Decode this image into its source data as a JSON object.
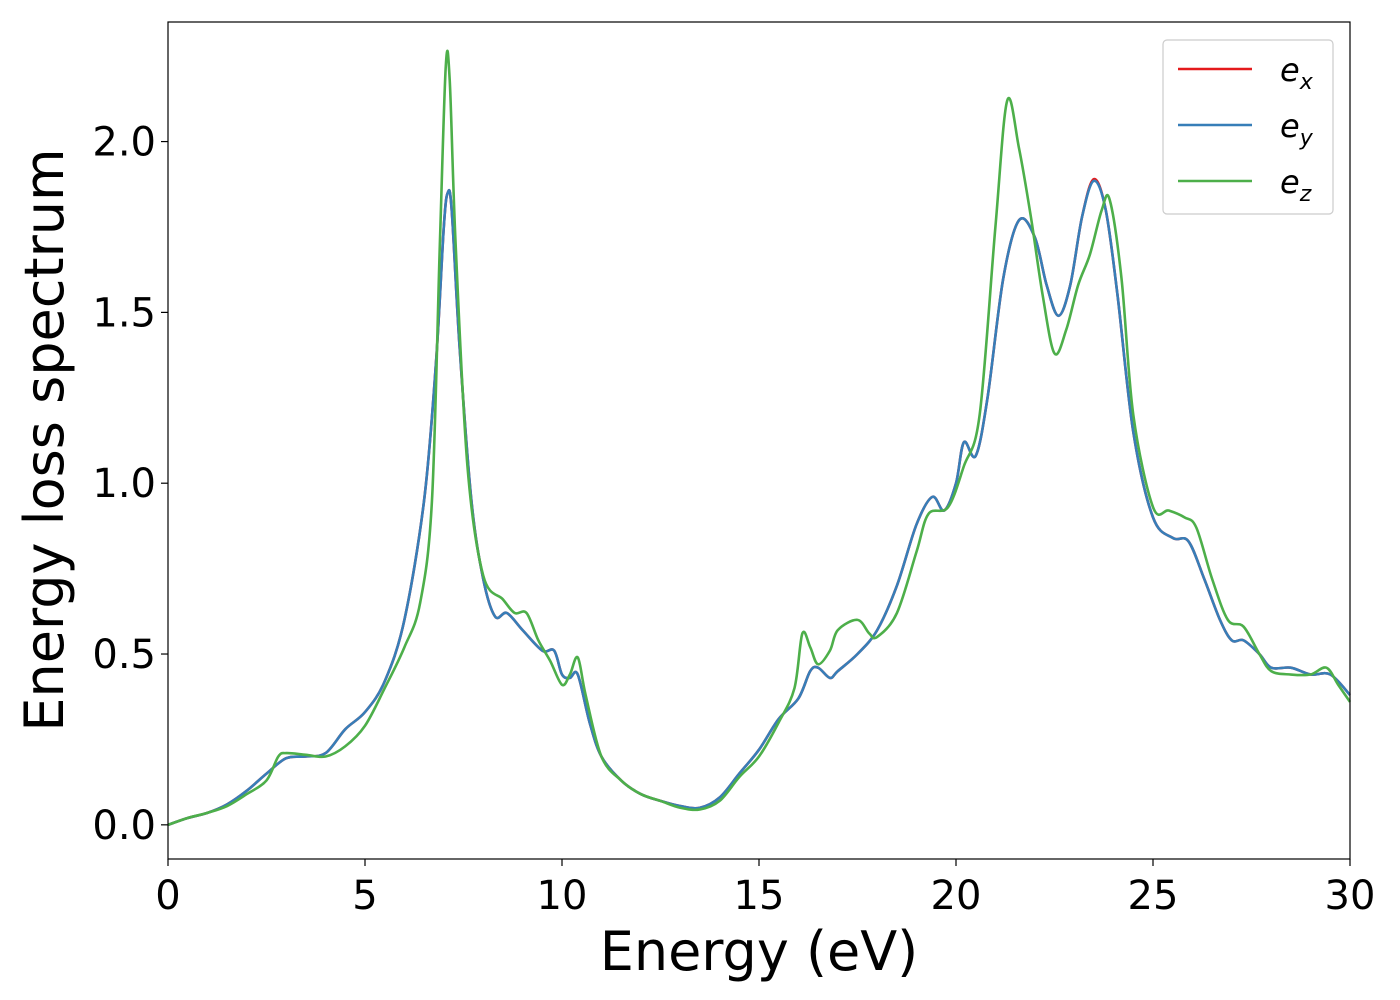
{
  "chart_data": {
    "type": "line",
    "title": "",
    "xlabel": "Energy (eV)",
    "ylabel": "Energy loss spectrum",
    "xlim": [
      0,
      30
    ],
    "ylim": [
      -0.1,
      2.35
    ],
    "xticks": [
      0,
      5,
      10,
      15,
      20,
      25,
      30
    ],
    "yticks": [
      0.0,
      0.5,
      1.0,
      1.5,
      2.0
    ],
    "xtick_labels": [
      "0",
      "5",
      "10",
      "15",
      "20",
      "25",
      "30"
    ],
    "ytick_labels": [
      "0.0",
      "0.5",
      "1.0",
      "1.5",
      "2.0"
    ],
    "grid": false,
    "legend_position": "top-right",
    "series": [
      {
        "name": "e",
        "subscript": "x",
        "color": "#e41a1c",
        "points": [
          [
            0,
            0.0
          ],
          [
            0.5,
            0.02
          ],
          [
            1,
            0.035
          ],
          [
            1.5,
            0.06
          ],
          [
            2,
            0.1
          ],
          [
            2.5,
            0.15
          ],
          [
            3,
            0.195
          ],
          [
            3.5,
            0.2
          ],
          [
            4,
            0.21
          ],
          [
            4.5,
            0.28
          ],
          [
            5,
            0.33
          ],
          [
            5.5,
            0.42
          ],
          [
            6,
            0.6
          ],
          [
            6.5,
            0.95
          ],
          [
            6.8,
            1.35
          ],
          [
            7,
            1.75
          ],
          [
            7.1,
            1.85
          ],
          [
            7.2,
            1.8
          ],
          [
            7.4,
            1.4
          ],
          [
            7.7,
            0.95
          ],
          [
            8,
            0.72
          ],
          [
            8.3,
            0.61
          ],
          [
            8.6,
            0.62
          ],
          [
            9,
            0.57
          ],
          [
            9.5,
            0.51
          ],
          [
            9.8,
            0.51
          ],
          [
            10,
            0.44
          ],
          [
            10.2,
            0.43
          ],
          [
            10.4,
            0.44
          ],
          [
            10.7,
            0.3
          ],
          [
            11,
            0.2
          ],
          [
            11.5,
            0.13
          ],
          [
            12,
            0.09
          ],
          [
            12.5,
            0.07
          ],
          [
            13,
            0.055
          ],
          [
            13.5,
            0.05
          ],
          [
            14,
            0.08
          ],
          [
            14.5,
            0.15
          ],
          [
            15,
            0.22
          ],
          [
            15.5,
            0.31
          ],
          [
            16,
            0.37
          ],
          [
            16.3,
            0.45
          ],
          [
            16.5,
            0.46
          ],
          [
            16.8,
            0.43
          ],
          [
            17,
            0.45
          ],
          [
            17.5,
            0.5
          ],
          [
            18,
            0.57
          ],
          [
            18.5,
            0.7
          ],
          [
            19,
            0.88
          ],
          [
            19.4,
            0.96
          ],
          [
            19.7,
            0.92
          ],
          [
            20,
            1.0
          ],
          [
            20.2,
            1.12
          ],
          [
            20.5,
            1.08
          ],
          [
            20.8,
            1.25
          ],
          [
            21.2,
            1.6
          ],
          [
            21.6,
            1.77
          ],
          [
            22,
            1.72
          ],
          [
            22.3,
            1.58
          ],
          [
            22.6,
            1.49
          ],
          [
            22.9,
            1.58
          ],
          [
            23.2,
            1.78
          ],
          [
            23.5,
            1.89
          ],
          [
            23.8,
            1.8
          ],
          [
            24.1,
            1.55
          ],
          [
            24.5,
            1.15
          ],
          [
            25,
            0.9
          ],
          [
            25.5,
            0.84
          ],
          [
            25.9,
            0.83
          ],
          [
            26.3,
            0.72
          ],
          [
            26.7,
            0.6
          ],
          [
            27,
            0.54
          ],
          [
            27.3,
            0.54
          ],
          [
            27.7,
            0.5
          ],
          [
            28,
            0.46
          ],
          [
            28.5,
            0.46
          ],
          [
            29,
            0.44
          ],
          [
            29.5,
            0.44
          ],
          [
            30,
            0.38
          ]
        ]
      },
      {
        "name": "e",
        "subscript": "y",
        "color": "#377eb8",
        "points": [
          [
            0,
            0.0
          ],
          [
            0.5,
            0.02
          ],
          [
            1,
            0.035
          ],
          [
            1.5,
            0.06
          ],
          [
            2,
            0.1
          ],
          [
            2.5,
            0.15
          ],
          [
            3,
            0.195
          ],
          [
            3.5,
            0.2
          ],
          [
            4,
            0.21
          ],
          [
            4.5,
            0.28
          ],
          [
            5,
            0.33
          ],
          [
            5.5,
            0.42
          ],
          [
            6,
            0.6
          ],
          [
            6.5,
            0.95
          ],
          [
            6.8,
            1.35
          ],
          [
            7,
            1.75
          ],
          [
            7.1,
            1.85
          ],
          [
            7.2,
            1.8
          ],
          [
            7.4,
            1.4
          ],
          [
            7.7,
            0.95
          ],
          [
            8,
            0.72
          ],
          [
            8.3,
            0.61
          ],
          [
            8.6,
            0.62
          ],
          [
            9,
            0.57
          ],
          [
            9.5,
            0.51
          ],
          [
            9.8,
            0.51
          ],
          [
            10,
            0.44
          ],
          [
            10.2,
            0.43
          ],
          [
            10.4,
            0.44
          ],
          [
            10.7,
            0.3
          ],
          [
            11,
            0.2
          ],
          [
            11.5,
            0.13
          ],
          [
            12,
            0.09
          ],
          [
            12.5,
            0.07
          ],
          [
            13,
            0.055
          ],
          [
            13.5,
            0.05
          ],
          [
            14,
            0.08
          ],
          [
            14.5,
            0.15
          ],
          [
            15,
            0.22
          ],
          [
            15.5,
            0.31
          ],
          [
            16,
            0.37
          ],
          [
            16.3,
            0.45
          ],
          [
            16.5,
            0.46
          ],
          [
            16.8,
            0.43
          ],
          [
            17,
            0.45
          ],
          [
            17.5,
            0.5
          ],
          [
            18,
            0.57
          ],
          [
            18.5,
            0.7
          ],
          [
            19,
            0.88
          ],
          [
            19.4,
            0.96
          ],
          [
            19.7,
            0.92
          ],
          [
            20,
            1.0
          ],
          [
            20.2,
            1.12
          ],
          [
            20.5,
            1.08
          ],
          [
            20.8,
            1.25
          ],
          [
            21.2,
            1.6
          ],
          [
            21.6,
            1.77
          ],
          [
            22,
            1.72
          ],
          [
            22.3,
            1.58
          ],
          [
            22.6,
            1.49
          ],
          [
            22.9,
            1.58
          ],
          [
            23.2,
            1.78
          ],
          [
            23.5,
            1.885
          ],
          [
            23.8,
            1.8
          ],
          [
            24.1,
            1.55
          ],
          [
            24.5,
            1.15
          ],
          [
            25,
            0.9
          ],
          [
            25.5,
            0.84
          ],
          [
            25.9,
            0.83
          ],
          [
            26.3,
            0.72
          ],
          [
            26.7,
            0.6
          ],
          [
            27,
            0.54
          ],
          [
            27.3,
            0.54
          ],
          [
            27.7,
            0.5
          ],
          [
            28,
            0.46
          ],
          [
            28.5,
            0.46
          ],
          [
            29,
            0.44
          ],
          [
            29.5,
            0.44
          ],
          [
            30,
            0.38
          ]
        ]
      },
      {
        "name": "e",
        "subscript": "z",
        "color": "#4daf4a",
        "points": [
          [
            0,
            0.0
          ],
          [
            0.5,
            0.02
          ],
          [
            1,
            0.035
          ],
          [
            1.5,
            0.055
          ],
          [
            2,
            0.09
          ],
          [
            2.5,
            0.13
          ],
          [
            2.8,
            0.2
          ],
          [
            3,
            0.21
          ],
          [
            3.5,
            0.205
          ],
          [
            4,
            0.2
          ],
          [
            4.5,
            0.23
          ],
          [
            5,
            0.29
          ],
          [
            5.5,
            0.4
          ],
          [
            6,
            0.52
          ],
          [
            6.4,
            0.65
          ],
          [
            6.7,
            0.95
          ],
          [
            6.9,
            1.7
          ],
          [
            7.05,
            2.22
          ],
          [
            7.15,
            2.18
          ],
          [
            7.3,
            1.7
          ],
          [
            7.6,
            1.05
          ],
          [
            8,
            0.73
          ],
          [
            8.5,
            0.66
          ],
          [
            8.8,
            0.62
          ],
          [
            9.1,
            0.62
          ],
          [
            9.4,
            0.54
          ],
          [
            9.7,
            0.48
          ],
          [
            10,
            0.41
          ],
          [
            10.2,
            0.44
          ],
          [
            10.4,
            0.49
          ],
          [
            10.6,
            0.38
          ],
          [
            11,
            0.2
          ],
          [
            11.5,
            0.13
          ],
          [
            12,
            0.09
          ],
          [
            12.5,
            0.07
          ],
          [
            13,
            0.05
          ],
          [
            13.5,
            0.045
          ],
          [
            14,
            0.07
          ],
          [
            14.5,
            0.14
          ],
          [
            15,
            0.2
          ],
          [
            15.5,
            0.3
          ],
          [
            15.9,
            0.4
          ],
          [
            16.1,
            0.56
          ],
          [
            16.3,
            0.52
          ],
          [
            16.5,
            0.47
          ],
          [
            16.8,
            0.51
          ],
          [
            17,
            0.57
          ],
          [
            17.5,
            0.6
          ],
          [
            17.8,
            0.56
          ],
          [
            18,
            0.55
          ],
          [
            18.5,
            0.62
          ],
          [
            19,
            0.8
          ],
          [
            19.3,
            0.91
          ],
          [
            19.8,
            0.93
          ],
          [
            20.2,
            1.05
          ],
          [
            20.6,
            1.2
          ],
          [
            21,
            1.75
          ],
          [
            21.3,
            2.12
          ],
          [
            21.6,
            1.98
          ],
          [
            21.9,
            1.78
          ],
          [
            22.2,
            1.55
          ],
          [
            22.5,
            1.38
          ],
          [
            22.8,
            1.45
          ],
          [
            23.1,
            1.58
          ],
          [
            23.4,
            1.67
          ],
          [
            23.7,
            1.8
          ],
          [
            23.9,
            1.83
          ],
          [
            24.2,
            1.6
          ],
          [
            24.5,
            1.2
          ],
          [
            25,
            0.93
          ],
          [
            25.4,
            0.92
          ],
          [
            25.8,
            0.9
          ],
          [
            26.1,
            0.87
          ],
          [
            26.5,
            0.72
          ],
          [
            26.9,
            0.6
          ],
          [
            27.3,
            0.58
          ],
          [
            27.7,
            0.5
          ],
          [
            28,
            0.45
          ],
          [
            28.5,
            0.44
          ],
          [
            29,
            0.44
          ],
          [
            29.4,
            0.46
          ],
          [
            29.7,
            0.41
          ],
          [
            30,
            0.36
          ]
        ]
      }
    ]
  }
}
